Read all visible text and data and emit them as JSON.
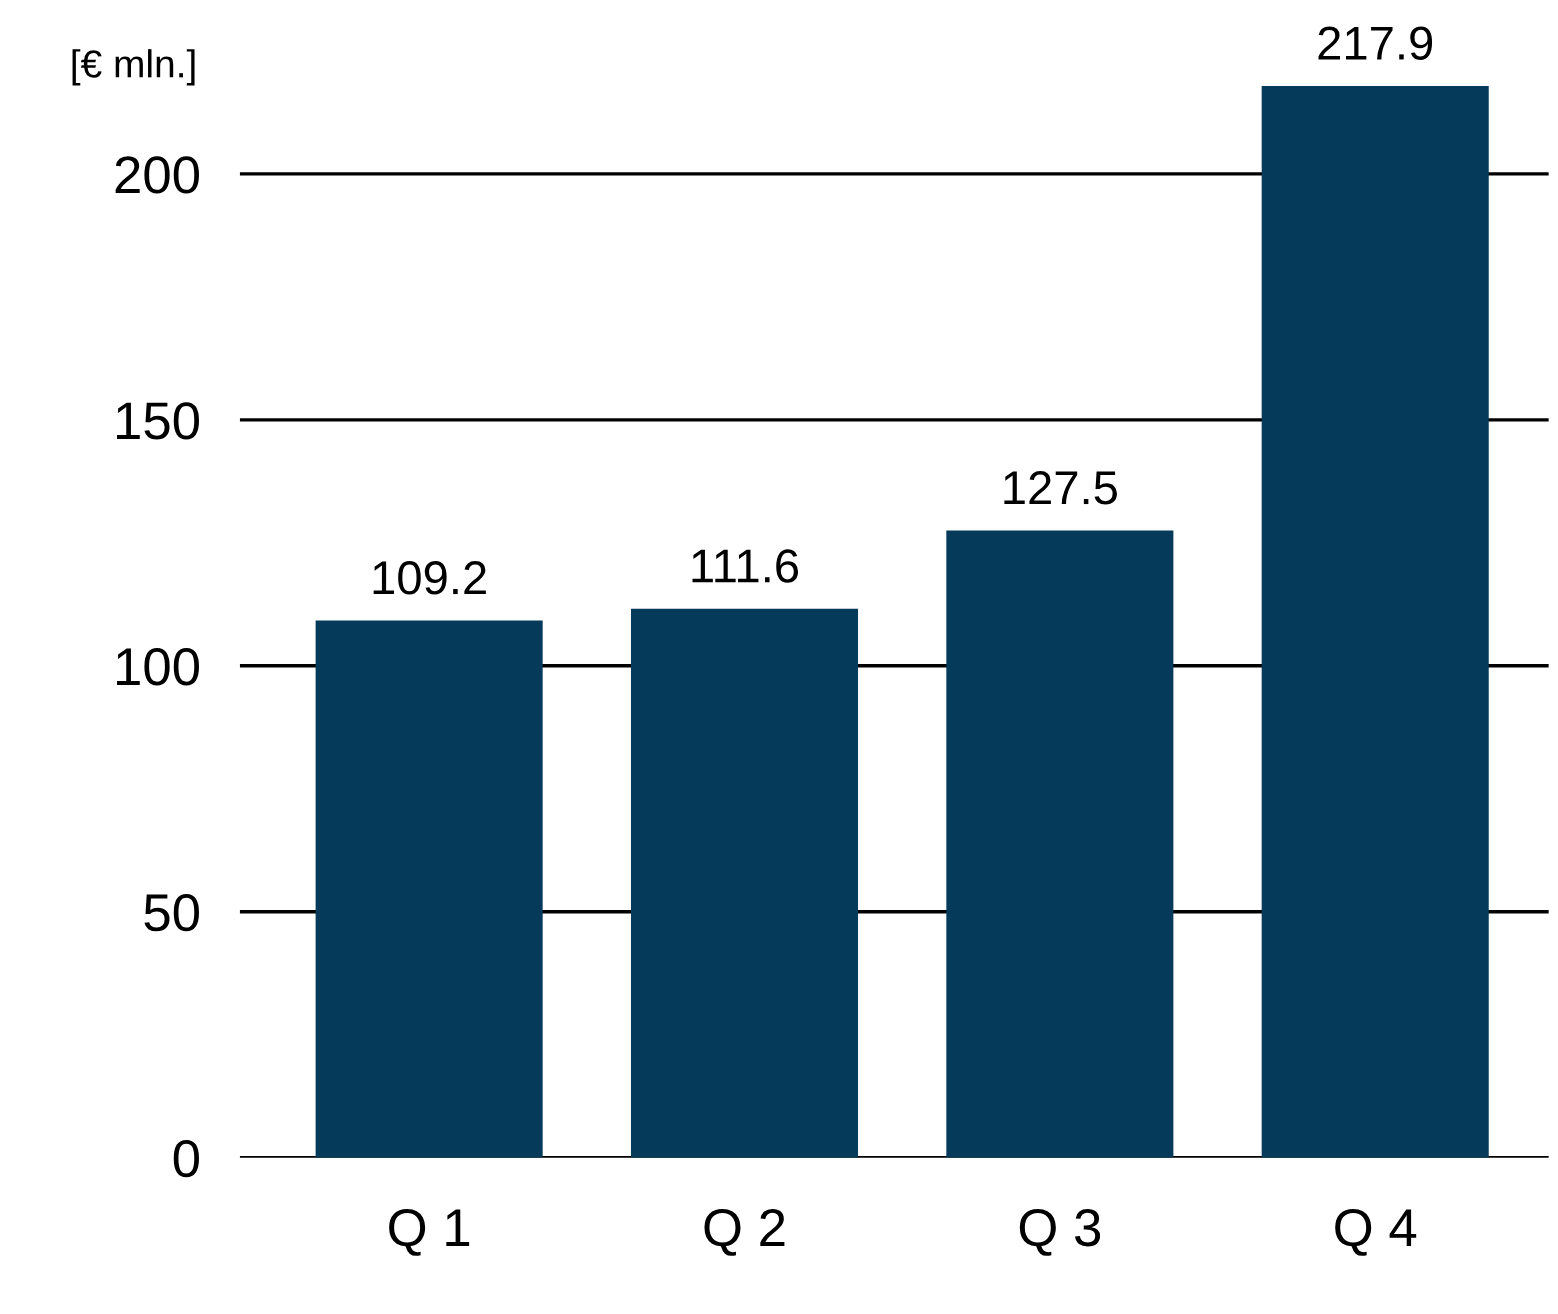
{
  "chart_data": {
    "type": "bar",
    "ylabel": "[€ mln.]",
    "categories": [
      "Q 1",
      "Q 2",
      "Q 3",
      "Q 4"
    ],
    "values": [
      109.2,
      111.6,
      127.5,
      217.9
    ],
    "color": "#053a5a",
    "ylim": [
      0,
      218
    ],
    "yticks": [
      0,
      50,
      100,
      150,
      200
    ],
    "grid": "y",
    "data_labels": true,
    "legend": false
  }
}
